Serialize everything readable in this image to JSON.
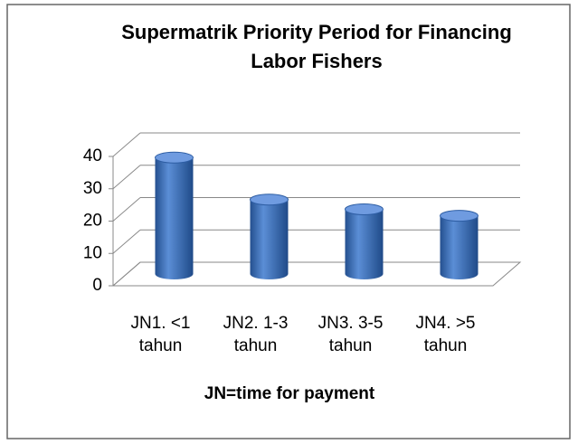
{
  "chart_data": {
    "type": "bar3d",
    "title": "Supermatrik Priority Period for Financing Labor Fishers",
    "x_label": "JN=time for payment",
    "categories": [
      "JN1. <1 tahun",
      "JN2. 1-3 tahun",
      "JN3. 3-5 tahun",
      "JN4. >5 tahun"
    ],
    "values": [
      36,
      23,
      20,
      18
    ],
    "color": "#3d6fc0",
    "ylim": [
      0,
      40
    ],
    "yticks": [
      0,
      10,
      20,
      30,
      40
    ],
    "grid": true
  }
}
